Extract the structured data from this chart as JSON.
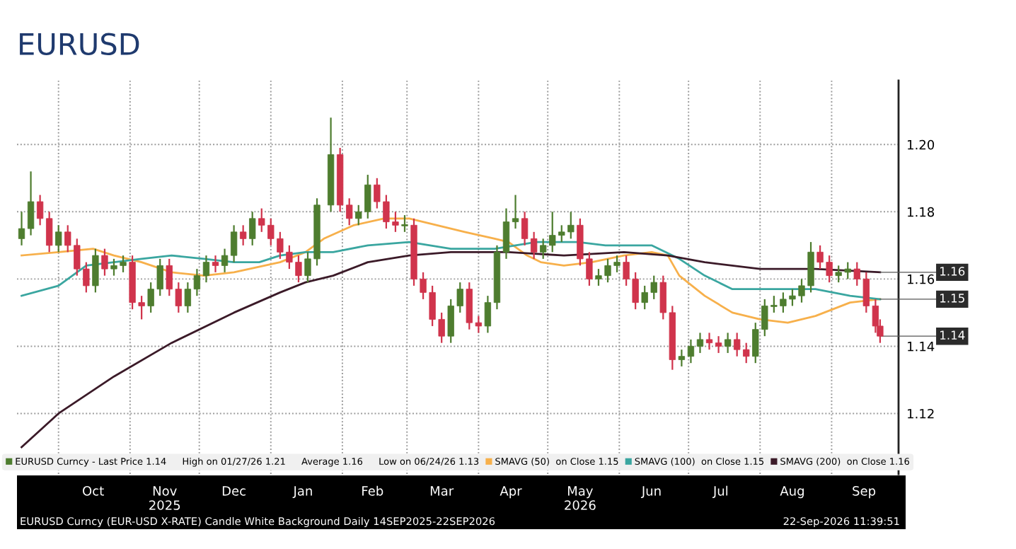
{
  "chart_data": {
    "type": "candlestick",
    "title": "EURUSD",
    "series": [
      {
        "type": "candlestick",
        "name": "EURUSD Curncy - Last Price 1.14",
        "color": "#4e7d2f",
        "colors": [
          "#4e7d2f",
          "#4e7d2f",
          "#d0344c",
          "#d0344c",
          "#4e7d2f",
          "#d0344c",
          "#d0344c",
          "#d0344c",
          "#4e7d2f",
          "#d0344c",
          "#4e7d2f",
          "#4e7d2f",
          "#d0344c",
          "#d0344c",
          "#4e7d2f",
          "#4e7d2f",
          "#d0344c",
          "#d0344c",
          "#4e7d2f",
          "#4e7d2f",
          "#4e7d2f",
          "#d0344c",
          "#4e7d2f",
          "#4e7d2f",
          "#d0344c",
          "#4e7d2f",
          "#d0344c",
          "#d0344c",
          "#d0344c",
          "#d0344c",
          "#d0344c",
          "#4e7d2f",
          "#4e7d2f",
          "#4e7d2f",
          "#d0344c",
          "#d0344c",
          "#4e7d2f",
          "#4e7d2f",
          "#d0344c",
          "#d0344c",
          "#d0344c",
          "#4e7d2f",
          "#d0344c",
          "#d0344c",
          "#d0344c",
          "#d0344c",
          "#4e7d2f",
          "#4e7d2f",
          "#d0344c",
          "#d0344c",
          "#4e7d2f",
          "#4e7d2f",
          "#4e7d2f",
          "#4e7d2f",
          "#d0344c",
          "#d0344c",
          "#4e7d2f",
          "#4e7d2f",
          "#4e7d2f",
          "#4e7d2f",
          "#d0344c",
          "#d0344c",
          "#4e7d2f",
          "#4e7d2f",
          "#4e7d2f",
          "#d0344c",
          "#d0344c",
          "#4e7d2f",
          "#4e7d2f",
          "#d0344c",
          "#d0344c",
          "#4e7d2f",
          "#4e7d2f",
          "#4e7d2f",
          "#d0344c",
          "#d0344c",
          "#4e7d2f",
          "#d0344c",
          "#d0344c",
          "#4e7d2f",
          "#4e7d2f",
          "#4e7d2f",
          "#4e7d2f",
          "#4e7d2f",
          "#4e7d2f",
          "#4e7d2f",
          "#d0344c",
          "#d0344c",
          "#4e7d2f",
          "#4e7d2f",
          "#d0344c",
          "#d0344c",
          "#d0344c",
          "#d0344c"
        ],
        "x": [
          "2025-09-15",
          "2025-09-19",
          "2025-09-23",
          "2025-09-27",
          "2025-10-01",
          "2025-10-05",
          "2025-10-09",
          "2025-10-13",
          "2025-10-17",
          "2025-10-21",
          "2025-10-25",
          "2025-10-29",
          "2025-11-02",
          "2025-11-06",
          "2025-11-10",
          "2025-11-14",
          "2025-11-18",
          "2025-11-22",
          "2025-11-26",
          "2025-11-30",
          "2025-12-04",
          "2025-12-08",
          "2025-12-12",
          "2025-12-16",
          "2025-12-20",
          "2025-12-24",
          "2025-12-28",
          "2026-01-01",
          "2026-01-05",
          "2026-01-09",
          "2026-01-13",
          "2026-01-17",
          "2026-01-21",
          "2026-01-27",
          "2026-01-31",
          "2026-02-04",
          "2026-02-08",
          "2026-02-12",
          "2026-02-16",
          "2026-02-20",
          "2026-02-24",
          "2026-02-28",
          "2026-03-04",
          "2026-03-08",
          "2026-03-12",
          "2026-03-16",
          "2026-03-20",
          "2026-03-24",
          "2026-03-28",
          "2026-04-01",
          "2026-04-05",
          "2026-04-09",
          "2026-04-13",
          "2026-04-17",
          "2026-04-21",
          "2026-04-25",
          "2026-04-29",
          "2026-05-03",
          "2026-05-07",
          "2026-05-11",
          "2026-05-15",
          "2026-05-19",
          "2026-05-23",
          "2026-05-27",
          "2026-05-31",
          "2026-06-04",
          "2026-06-08",
          "2026-06-12",
          "2026-06-16",
          "2026-06-20",
          "2026-06-24",
          "2026-06-28",
          "2026-07-02",
          "2026-07-06",
          "2026-07-10",
          "2026-07-14",
          "2026-07-18",
          "2026-07-22",
          "2026-07-26",
          "2026-07-30",
          "2026-08-03",
          "2026-08-07",
          "2026-08-11",
          "2026-08-15",
          "2026-08-19",
          "2026-08-23",
          "2026-08-27",
          "2026-08-31",
          "2026-09-04",
          "2026-09-08",
          "2026-09-12",
          "2026-09-16",
          "2026-09-20",
          "2026-09-22"
        ],
        "ohlc": [
          [
            1.172,
            1.18,
            1.17,
            1.175
          ],
          [
            1.175,
            1.192,
            1.173,
            1.183
          ],
          [
            1.183,
            1.185,
            1.176,
            1.178
          ],
          [
            1.178,
            1.18,
            1.168,
            1.17
          ],
          [
            1.17,
            1.176,
            1.168,
            1.174
          ],
          [
            1.174,
            1.176,
            1.168,
            1.17
          ],
          [
            1.17,
            1.172,
            1.161,
            1.163
          ],
          [
            1.163,
            1.165,
            1.156,
            1.158
          ],
          [
            1.158,
            1.169,
            1.156,
            1.167
          ],
          [
            1.167,
            1.169,
            1.161,
            1.163
          ],
          [
            1.163,
            1.166,
            1.161,
            1.164
          ],
          [
            1.164,
            1.167,
            1.162,
            1.165
          ],
          [
            1.165,
            1.167,
            1.151,
            1.153
          ],
          [
            1.153,
            1.155,
            1.148,
            1.152
          ],
          [
            1.152,
            1.159,
            1.15,
            1.157
          ],
          [
            1.157,
            1.166,
            1.155,
            1.164
          ],
          [
            1.164,
            1.166,
            1.155,
            1.157
          ],
          [
            1.157,
            1.159,
            1.15,
            1.152
          ],
          [
            1.152,
            1.159,
            1.15,
            1.157
          ],
          [
            1.157,
            1.163,
            1.155,
            1.161
          ],
          [
            1.161,
            1.167,
            1.159,
            1.165
          ],
          [
            1.165,
            1.167,
            1.162,
            1.164
          ],
          [
            1.164,
            1.169,
            1.162,
            1.167
          ],
          [
            1.167,
            1.176,
            1.165,
            1.174
          ],
          [
            1.174,
            1.176,
            1.17,
            1.172
          ],
          [
            1.172,
            1.18,
            1.17,
            1.178
          ],
          [
            1.178,
            1.181,
            1.174,
            1.176
          ],
          [
            1.176,
            1.178,
            1.17,
            1.172
          ],
          [
            1.172,
            1.174,
            1.166,
            1.168
          ],
          [
            1.168,
            1.17,
            1.163,
            1.165
          ],
          [
            1.165,
            1.167,
            1.159,
            1.161
          ],
          [
            1.161,
            1.168,
            1.159,
            1.166
          ],
          [
            1.166,
            1.184,
            1.164,
            1.182
          ],
          [
            1.182,
            1.208,
            1.18,
            1.197
          ],
          [
            1.197,
            1.199,
            1.18,
            1.182
          ],
          [
            1.182,
            1.184,
            1.176,
            1.178
          ],
          [
            1.178,
            1.182,
            1.176,
            1.18
          ],
          [
            1.18,
            1.191,
            1.178,
            1.188
          ],
          [
            1.188,
            1.19,
            1.181,
            1.183
          ],
          [
            1.183,
            1.185,
            1.175,
            1.177
          ],
          [
            1.177,
            1.18,
            1.174,
            1.176
          ],
          [
            1.176,
            1.179,
            1.174,
            1.176
          ],
          [
            1.176,
            1.178,
            1.158,
            1.16
          ],
          [
            1.16,
            1.162,
            1.154,
            1.156
          ],
          [
            1.156,
            1.158,
            1.146,
            1.148
          ],
          [
            1.148,
            1.15,
            1.141,
            1.143
          ],
          [
            1.143,
            1.154,
            1.141,
            1.152
          ],
          [
            1.152,
            1.159,
            1.15,
            1.157
          ],
          [
            1.157,
            1.159,
            1.145,
            1.147
          ],
          [
            1.147,
            1.149,
            1.144,
            1.146
          ],
          [
            1.146,
            1.155,
            1.144,
            1.153
          ],
          [
            1.153,
            1.17,
            1.151,
            1.168
          ],
          [
            1.168,
            1.181,
            1.166,
            1.177
          ],
          [
            1.177,
            1.185,
            1.175,
            1.178
          ],
          [
            1.178,
            1.18,
            1.17,
            1.172
          ],
          [
            1.172,
            1.174,
            1.166,
            1.168
          ],
          [
            1.168,
            1.172,
            1.166,
            1.17
          ],
          [
            1.17,
            1.18,
            1.168,
            1.173
          ],
          [
            1.173,
            1.176,
            1.171,
            1.174
          ],
          [
            1.174,
            1.18,
            1.172,
            1.176
          ],
          [
            1.176,
            1.178,
            1.164,
            1.166
          ],
          [
            1.166,
            1.168,
            1.158,
            1.16
          ],
          [
            1.16,
            1.163,
            1.158,
            1.161
          ],
          [
            1.161,
            1.166,
            1.159,
            1.164
          ],
          [
            1.164,
            1.167,
            1.162,
            1.165
          ],
          [
            1.165,
            1.167,
            1.158,
            1.16
          ],
          [
            1.16,
            1.162,
            1.151,
            1.153
          ],
          [
            1.153,
            1.158,
            1.151,
            1.156
          ],
          [
            1.156,
            1.161,
            1.154,
            1.159
          ],
          [
            1.159,
            1.161,
            1.148,
            1.15
          ],
          [
            1.15,
            1.152,
            1.133,
            1.136
          ],
          [
            1.136,
            1.139,
            1.134,
            1.137
          ],
          [
            1.137,
            1.142,
            1.135,
            1.14
          ],
          [
            1.14,
            1.144,
            1.138,
            1.142
          ],
          [
            1.142,
            1.144,
            1.139,
            1.141
          ],
          [
            1.141,
            1.143,
            1.138,
            1.14
          ],
          [
            1.14,
            1.144,
            1.138,
            1.142
          ],
          [
            1.142,
            1.144,
            1.137,
            1.139
          ],
          [
            1.139,
            1.141,
            1.135,
            1.137
          ],
          [
            1.137,
            1.147,
            1.135,
            1.145
          ],
          [
            1.145,
            1.154,
            1.143,
            1.152
          ],
          [
            1.152,
            1.155,
            1.15,
            1.152
          ],
          [
            1.152,
            1.156,
            1.15,
            1.154
          ],
          [
            1.154,
            1.157,
            1.152,
            1.155
          ],
          [
            1.155,
            1.16,
            1.153,
            1.158
          ],
          [
            1.158,
            1.171,
            1.156,
            1.168
          ],
          [
            1.168,
            1.17,
            1.163,
            1.165
          ],
          [
            1.165,
            1.167,
            1.159,
            1.161
          ],
          [
            1.161,
            1.164,
            1.159,
            1.162
          ],
          [
            1.162,
            1.165,
            1.16,
            1.163
          ],
          [
            1.163,
            1.165,
            1.158,
            1.16
          ],
          [
            1.16,
            1.162,
            1.15,
            1.152
          ],
          [
            1.152,
            1.154,
            1.144,
            1.146
          ],
          [
            1.146,
            1.148,
            1.141,
            1.143
          ]
        ]
      },
      {
        "type": "line",
        "name": "SMAVG (50)  on Close 1.15",
        "color": "#f7b04b",
        "x": [
          "2025-09-15",
          "2025-10-01",
          "2025-10-16",
          "2025-10-25",
          "2025-11-06",
          "2025-11-19",
          "2025-12-03",
          "2025-12-16",
          "2026-01-05",
          "2026-01-16",
          "2026-01-24",
          "2026-02-06",
          "2026-02-19",
          "2026-03-02",
          "2026-03-14",
          "2026-03-26",
          "2026-04-08",
          "2026-04-14",
          "2026-04-22",
          "2026-04-28",
          "2026-05-08",
          "2026-05-20",
          "2026-06-03",
          "2026-06-15",
          "2026-06-22",
          "2026-06-27",
          "2026-07-08",
          "2026-07-20",
          "2026-08-01",
          "2026-08-13",
          "2026-08-25",
          "2026-09-09",
          "2026-09-22"
        ],
        "values": [
          1.167,
          1.168,
          1.169,
          1.167,
          1.165,
          1.162,
          1.161,
          1.162,
          1.165,
          1.168,
          1.172,
          1.176,
          1.178,
          1.178,
          1.176,
          1.174,
          1.172,
          1.171,
          1.167,
          1.165,
          1.164,
          1.165,
          1.167,
          1.168,
          1.167,
          1.161,
          1.155,
          1.15,
          1.148,
          1.147,
          1.149,
          1.153,
          1.154
        ]
      },
      {
        "type": "line",
        "name": "SMAVG (100)  on Close 1.15",
        "color": "#3aa6a0",
        "x": [
          "2025-09-15",
          "2025-10-01",
          "2025-10-13",
          "2025-10-25",
          "2025-11-06",
          "2025-11-19",
          "2025-12-03",
          "2025-12-16",
          "2025-12-27",
          "2026-01-05",
          "2026-01-16",
          "2026-01-28",
          "2026-02-12",
          "2026-03-02",
          "2026-03-20",
          "2026-04-08",
          "2026-04-26",
          "2026-05-14",
          "2026-05-26",
          "2026-06-15",
          "2026-06-27",
          "2026-07-08",
          "2026-07-20",
          "2026-08-01",
          "2026-08-13",
          "2026-08-25",
          "2026-09-09",
          "2026-09-22"
        ],
        "values": [
          1.155,
          1.158,
          1.164,
          1.165,
          1.166,
          1.167,
          1.166,
          1.165,
          1.165,
          1.167,
          1.168,
          1.168,
          1.17,
          1.171,
          1.169,
          1.169,
          1.171,
          1.171,
          1.17,
          1.17,
          1.166,
          1.161,
          1.157,
          1.157,
          1.157,
          1.157,
          1.155,
          1.154
        ]
      },
      {
        "type": "line",
        "name": "SMAVG (200)  on Close 1.16",
        "color": "#3b1a28",
        "x": [
          "2025-09-15",
          "2025-10-01",
          "2025-10-25",
          "2025-11-19",
          "2025-12-16",
          "2026-01-05",
          "2026-01-16",
          "2026-01-28",
          "2026-02-12",
          "2026-03-02",
          "2026-03-20",
          "2026-04-14",
          "2026-05-08",
          "2026-06-03",
          "2026-06-22",
          "2026-07-08",
          "2026-08-01",
          "2026-08-25",
          "2026-09-22"
        ],
        "values": [
          1.11,
          1.12,
          1.131,
          1.141,
          1.15,
          1.156,
          1.159,
          1.161,
          1.165,
          1.167,
          1.168,
          1.168,
          1.167,
          1.168,
          1.167,
          1.165,
          1.163,
          1.163,
          1.162
        ]
      }
    ],
    "xlim": [
      "2025-09-13",
      "2026-09-30"
    ],
    "xticks": [
      {
        "value": "2025-10-01",
        "label": null
      },
      {
        "value": "2025-10-16",
        "label": "Oct"
      },
      {
        "value": "2025-11-01",
        "label": null
      },
      {
        "value": "2025-11-16",
        "label": "Nov\n2025"
      },
      {
        "value": "2025-12-01",
        "label": null
      },
      {
        "value": "2025-12-16",
        "label": "Dec"
      },
      {
        "value": "2026-01-01",
        "label": null
      },
      {
        "value": "2026-01-15",
        "label": "Jan"
      },
      {
        "value": "2026-02-01",
        "label": null
      },
      {
        "value": "2026-02-14",
        "label": "Feb"
      },
      {
        "value": "2026-03-01",
        "label": null
      },
      {
        "value": "2026-03-16",
        "label": "Mar"
      },
      {
        "value": "2026-04-01",
        "label": null
      },
      {
        "value": "2026-04-15",
        "label": "Apr"
      },
      {
        "value": "2026-05-01",
        "label": null
      },
      {
        "value": "2026-05-15",
        "label": "May\n2026"
      },
      {
        "value": "2026-06-01",
        "label": null
      },
      {
        "value": "2026-06-15",
        "label": "Jun"
      },
      {
        "value": "2026-07-01",
        "label": null
      },
      {
        "value": "2026-07-15",
        "label": "Jul"
      },
      {
        "value": "2026-08-01",
        "label": null
      },
      {
        "value": "2026-08-15",
        "label": "Aug"
      },
      {
        "value": "2026-09-01",
        "label": null
      },
      {
        "value": "2026-09-15",
        "label": "Sep"
      }
    ],
    "ylim": [
      1.102,
      1.219
    ],
    "yticks": [
      {
        "value": 1.12,
        "label": "1.12"
      },
      {
        "value": 1.14,
        "label": "1.14"
      },
      {
        "value": 1.16,
        "label": "1.16"
      },
      {
        "value": 1.18,
        "label": "1.18"
      },
      {
        "value": 1.2,
        "label": "1.20"
      }
    ],
    "grid": true,
    "legend": "bottom",
    "annotations": [
      "High on 01/27/26 1.21",
      "Average 1.16",
      "Low on 06/24/26 1.13",
      "EURUSD Curncy (EUR-USD X-RATE) Candle White Background Daily 14SEP2025-22SEP2026",
      "22-Sep-2026 11:39:51",
      {
        "text": "1.16",
        "x": "2026-09-22",
        "y": 1.162
      },
      {
        "text": "1.15",
        "x": "2026-09-22",
        "y": 1.154
      },
      {
        "text": "1.14",
        "x": "2026-09-22",
        "y": 1.143
      }
    ]
  }
}
